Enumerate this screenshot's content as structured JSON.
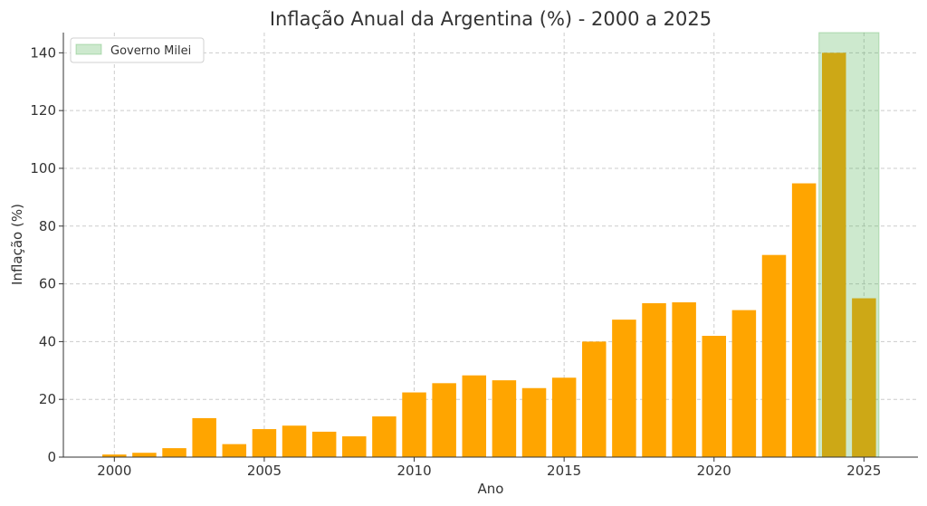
{
  "chart_data": {
    "type": "bar",
    "title": "Inflação Anual da Argentina (%) - 2000 a 2025",
    "xlabel": "Ano",
    "ylabel": "Inflação (%)",
    "x": [
      2000,
      2001,
      2002,
      2003,
      2004,
      2005,
      2006,
      2007,
      2008,
      2009,
      2010,
      2011,
      2012,
      2013,
      2014,
      2015,
      2016,
      2017,
      2018,
      2019,
      2020,
      2021,
      2022,
      2023,
      2024,
      2025
    ],
    "values": [
      0.9,
      1.5,
      3.1,
      13.5,
      4.5,
      9.7,
      10.9,
      8.8,
      7.2,
      14.1,
      22.4,
      25.6,
      28.3,
      26.6,
      23.9,
      27.5,
      40.0,
      47.6,
      53.3,
      53.6,
      42.0,
      50.9,
      70.0,
      94.8,
      140.0,
      55.0
    ],
    "xticks": [
      2000,
      2005,
      2010,
      2015,
      2020,
      2025
    ],
    "yticks": [
      0,
      20,
      40,
      60,
      80,
      100,
      120,
      140
    ],
    "xlim": [
      1998.3,
      2026.8
    ],
    "ylim": [
      0,
      147
    ],
    "bar_color": "#ffa500",
    "highlight": {
      "label": "Governo Milei",
      "start": 2023.5,
      "end": 2025.5,
      "color": "#b3dbb3"
    },
    "grid": true,
    "legend_position": "top-left"
  }
}
